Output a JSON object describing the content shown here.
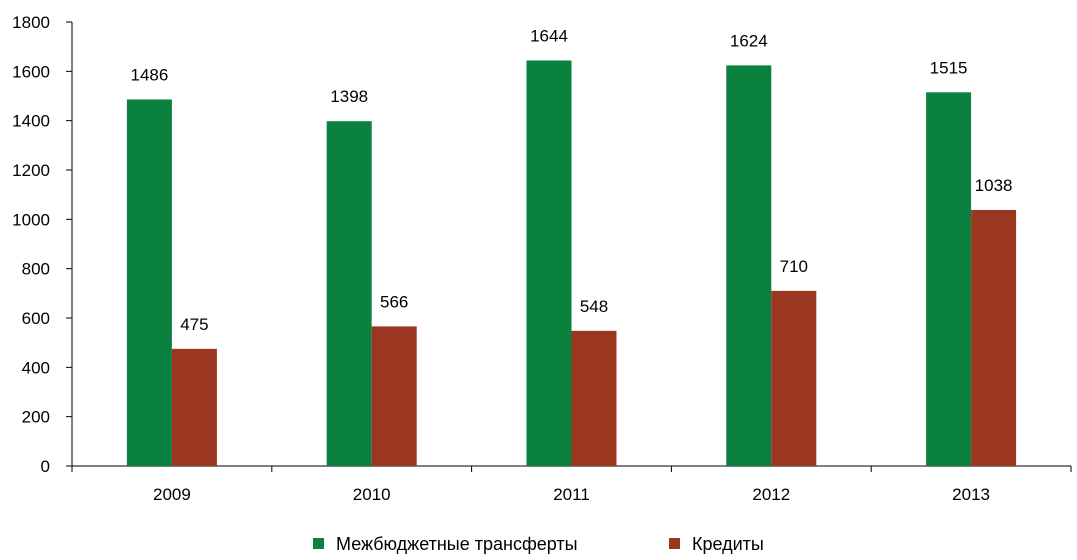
{
  "chart_data": {
    "type": "bar",
    "categories": [
      "2009",
      "2010",
      "2011",
      "2012",
      "2013"
    ],
    "series": [
      {
        "name": "Межбюджетные трансферты",
        "values": [
          1486,
          1398,
          1644,
          1624,
          1515
        ],
        "color": "#0b8140"
      },
      {
        "name": "Кредиты",
        "values": [
          475,
          566,
          548,
          710,
          1038
        ],
        "color": "#9b3621"
      }
    ],
    "ylim": [
      0,
      1800
    ],
    "yticks": [
      0,
      200,
      400,
      600,
      800,
      1000,
      1200,
      1400,
      1600,
      1800
    ],
    "title": "",
    "xlabel": "",
    "ylabel": "",
    "grid": false,
    "legend_position": "bottom"
  }
}
